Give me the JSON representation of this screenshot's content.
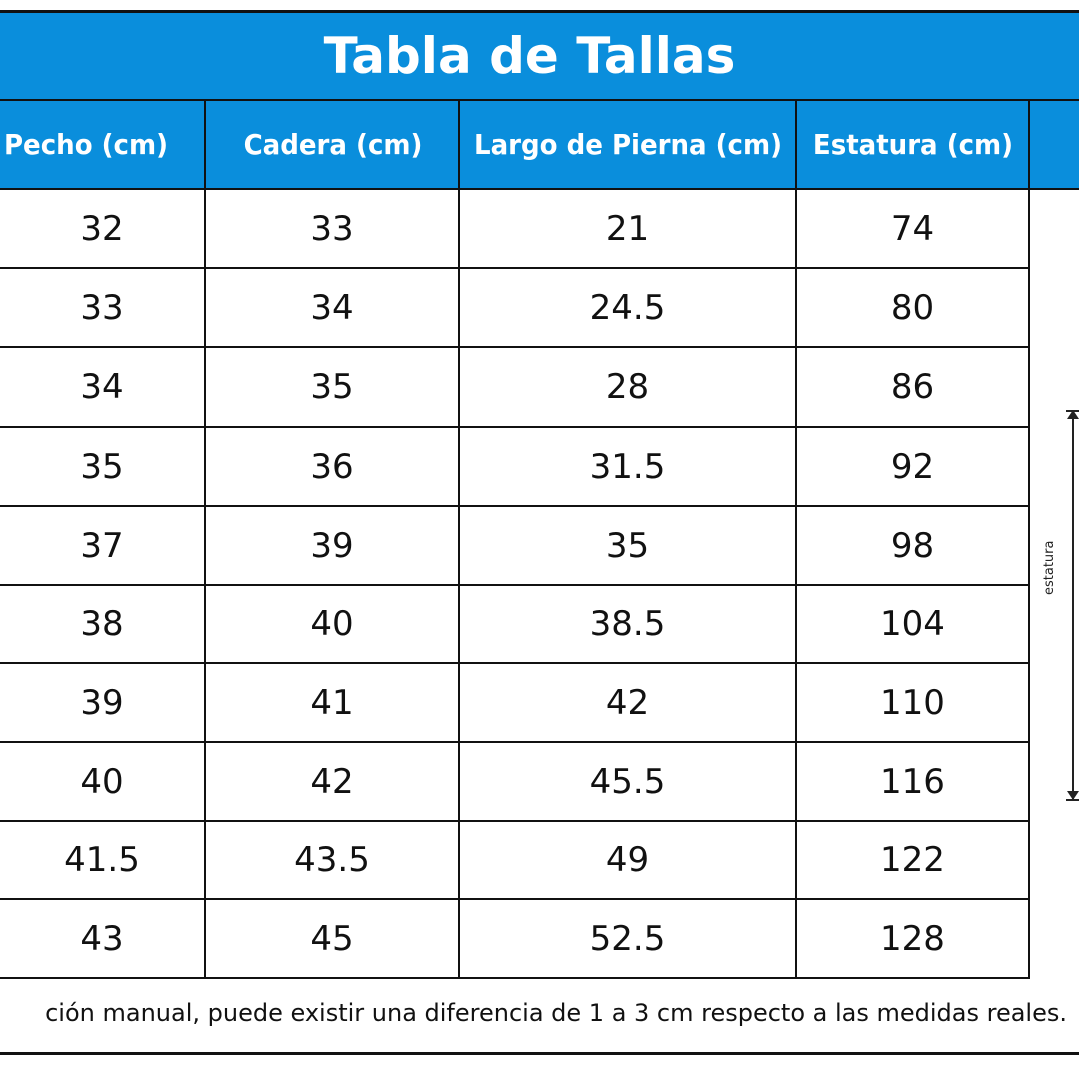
{
  "title": "Tabla de Tallas",
  "headers": [
    "Pecho (cm)",
    "Cadera (cm)",
    "Largo de Pierna (cm)",
    "Estatura (cm)"
  ],
  "rows": [
    [
      "32",
      "33",
      "21",
      "74"
    ],
    [
      "33",
      "34",
      "24.5",
      "80"
    ],
    [
      "34",
      "35",
      "28",
      "86"
    ],
    [
      "35",
      "36",
      "31.5",
      "92"
    ],
    [
      "37",
      "39",
      "35",
      "98"
    ],
    [
      "38",
      "40",
      "38.5",
      "104"
    ],
    [
      "39",
      "41",
      "42",
      "110"
    ],
    [
      "40",
      "42",
      "45.5",
      "116"
    ],
    [
      "41.5",
      "43.5",
      "49",
      "122"
    ],
    [
      "43",
      "45",
      "52.5",
      "128"
    ]
  ],
  "note": "ción manual, puede existir una diferencia de 1 a 3 cm respecto a las medidas reales.",
  "figure_label": "estatura",
  "colors": {
    "header_bg": "#0a8edc",
    "header_text": "#ffffff",
    "grid": "#111111"
  }
}
